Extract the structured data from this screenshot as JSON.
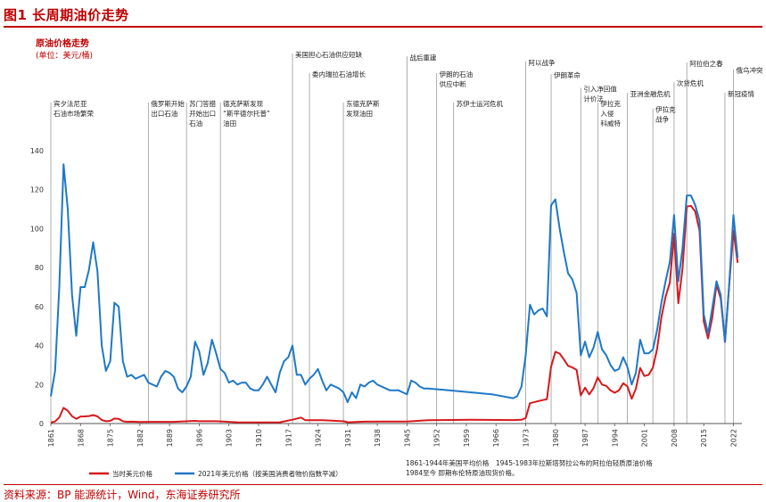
{
  "figure": {
    "title": "图1 长周期油价走势",
    "subtitle": "原油价格走势",
    "unit": "(单位：美元/桶)",
    "source": "资料来源：BP 能源统计，Wind，东海证券研究所"
  },
  "colors": {
    "accent": "#c00000",
    "nominal": "#d7191c",
    "real": "#1f78c8",
    "grid": "#9a9a9a"
  },
  "chart_data": {
    "type": "line",
    "xlim": [
      1861,
      2024
    ],
    "ylim": [
      0,
      140
    ],
    "yticks": [
      0,
      20,
      40,
      60,
      80,
      100,
      120,
      140
    ],
    "xticks": [
      1861,
      1868,
      1875,
      1882,
      1889,
      1896,
      1903,
      1910,
      1917,
      1924,
      1931,
      1938,
      1945,
      1952,
      1959,
      1966,
      1973,
      1980,
      1987,
      1994,
      2001,
      2008,
      2015,
      2022
    ],
    "grid": "vertical-at-events",
    "legend_position": "bottom",
    "notes": [
      "1861-1944年美国平均价格　1945-1983年拉斯塔努拉公布的阿拉伯轻质原油价格",
      "1984至今 即期布伦特原油现货价格。"
    ],
    "series": [
      {
        "name": "当时美元价格",
        "color": "#d7191c",
        "x": [
          1861,
          1862,
          1863,
          1864,
          1865,
          1866,
          1867,
          1868,
          1869,
          1870,
          1871,
          1872,
          1873,
          1874,
          1875,
          1876,
          1877,
          1878,
          1879,
          1880,
          1882,
          1885,
          1890,
          1895,
          1896,
          1900,
          1905,
          1910,
          1915,
          1918,
          1920,
          1921,
          1925,
          1930,
          1931,
          1935,
          1940,
          1945,
          1950,
          1960,
          1970,
          1972,
          1973,
          1974,
          1976,
          1978,
          1979,
          1980,
          1981,
          1982,
          1983,
          1984,
          1985,
          1986,
          1987,
          1988,
          1989,
          1990,
          1991,
          1992,
          1993,
          1994,
          1995,
          1996,
          1997,
          1998,
          1999,
          2000,
          2001,
          2002,
          2003,
          2004,
          2005,
          2006,
          2007,
          2008,
          2009,
          2010,
          2011,
          2012,
          2013,
          2014,
          2015,
          2016,
          2017,
          2018,
          2019,
          2020,
          2021,
          2022,
          2023
        ],
        "values": [
          0.5,
          1.05,
          3.15,
          8.06,
          6.59,
          3.74,
          2.41,
          3.63,
          3.64,
          3.86,
          4.34,
          3.64,
          1.83,
          1.17,
          1.35,
          2.56,
          2.42,
          1.19,
          0.86,
          0.95,
          0.78,
          0.88,
          0.87,
          1.36,
          1.18,
          1.19,
          0.62,
          0.61,
          0.64,
          1.98,
          3.07,
          1.73,
          1.68,
          1.19,
          0.65,
          0.97,
          1.02,
          1.05,
          1.71,
          1.9,
          1.8,
          1.9,
          2.83,
          10.41,
          11.51,
          12.5,
          29.2,
          36.8,
          35.9,
          32.9,
          29.6,
          28.8,
          27.6,
          14.4,
          18.4,
          14.9,
          18.2,
          23.7,
          20.0,
          19.3,
          17.0,
          15.8,
          17.0,
          20.7,
          19.1,
          12.7,
          17.9,
          28.5,
          24.4,
          25.0,
          28.8,
          38.3,
          54.5,
          65.1,
          72.4,
          97.3,
          61.7,
          79.6,
          111.3,
          111.7,
          108.7,
          98.9,
          52.4,
          43.7,
          54.2,
          71.3,
          64.2,
          41.8,
          70.9,
          99.0,
          82.5
        ]
      },
      {
        "name": "2021年美元价格（按美国消费者物价指数平减）",
        "color": "#1f78c8",
        "x": [
          1861,
          1862,
          1863,
          1864,
          1865,
          1866,
          1867,
          1868,
          1869,
          1870,
          1871,
          1872,
          1873,
          1874,
          1875,
          1876,
          1877,
          1878,
          1879,
          1880,
          1881,
          1882,
          1883,
          1884,
          1885,
          1886,
          1887,
          1888,
          1889,
          1890,
          1891,
          1892,
          1893,
          1894,
          1895,
          1896,
          1897,
          1898,
          1899,
          1900,
          1901,
          1902,
          1903,
          1904,
          1905,
          1906,
          1907,
          1908,
          1909,
          1910,
          1911,
          1912,
          1913,
          1914,
          1915,
          1916,
          1917,
          1918,
          1919,
          1920,
          1921,
          1922,
          1923,
          1924,
          1925,
          1926,
          1927,
          1928,
          1929,
          1930,
          1931,
          1932,
          1933,
          1934,
          1935,
          1936,
          1937,
          1938,
          1939,
          1940,
          1941,
          1942,
          1943,
          1944,
          1945,
          1946,
          1947,
          1948,
          1949,
          1950,
          1955,
          1960,
          1965,
          1970,
          1971,
          1972,
          1973,
          1974,
          1975,
          1976,
          1977,
          1978,
          1979,
          1980,
          1981,
          1982,
          1983,
          1984,
          1985,
          1986,
          1987,
          1988,
          1989,
          1990,
          1991,
          1992,
          1993,
          1994,
          1995,
          1996,
          1997,
          1998,
          1999,
          2000,
          2001,
          2002,
          2003,
          2004,
          2005,
          2006,
          2007,
          2008,
          2009,
          2010,
          2011,
          2012,
          2013,
          2014,
          2015,
          2016,
          2017,
          2018,
          2019,
          2020,
          2021,
          2022,
          2023
        ],
        "values": [
          14,
          27,
          70,
          133,
          110,
          66,
          45,
          70,
          70,
          79,
          93,
          78,
          40,
          27,
          32,
          62,
          60,
          32,
          24,
          25,
          23,
          24,
          25,
          21,
          20,
          19,
          24,
          27,
          26,
          24,
          18,
          16,
          19,
          24,
          42,
          37,
          25,
          31,
          43,
          36,
          28,
          26,
          21,
          22,
          20,
          21,
          21,
          18,
          17,
          17,
          20,
          24,
          20,
          16,
          26,
          32,
          34,
          40,
          25,
          25,
          20,
          23,
          25,
          28,
          22,
          17,
          20,
          19,
          18,
          16,
          11,
          16,
          13,
          20,
          19,
          21,
          22,
          20,
          19,
          18,
          17,
          17,
          17,
          16,
          15,
          22,
          21,
          19,
          18,
          18,
          17,
          16,
          15,
          13,
          14,
          19,
          35,
          61,
          56,
          58,
          59,
          55,
          112,
          115,
          100,
          88,
          77,
          74,
          67,
          35,
          42,
          34,
          39,
          47,
          38,
          35,
          30,
          27,
          28,
          34,
          29,
          20,
          26,
          43,
          36,
          36,
          38,
          48,
          62,
          73,
          83,
          107,
          73,
          90,
          117,
          117,
          112,
          104,
          56,
          46,
          59,
          73,
          66,
          42,
          71,
          107,
          85
        ]
      }
    ],
    "events": [
      {
        "label": "宾夕法尼亚\n石油市场繁荣",
        "year": 1861,
        "row": 5
      },
      {
        "label": "俄罗斯开始\n出口石油",
        "year": 1884,
        "row": 5
      },
      {
        "label": "苏门答腊\n开始出口\n石油",
        "year": 1893,
        "row": 5
      },
      {
        "label": "德克萨斯发现\n“斯平德尔托普”\n油田",
        "year": 1901,
        "row": 5
      },
      {
        "label": "美国担心石油供应短缺",
        "year": 1918,
        "row": 0
      },
      {
        "label": "委内瑞拉石油增长",
        "year": 1922,
        "row": 2
      },
      {
        "label": "东德克萨斯\n发现油田",
        "year": 1930,
        "row": 5
      },
      {
        "label": "战后重建",
        "year": 1945,
        "row": 0.3
      },
      {
        "label": "伊朗的石油\n供应中断",
        "year": 1952,
        "row": 2
      },
      {
        "label": "苏伊士运河危机",
        "year": 1956,
        "row": 5
      },
      {
        "label": "阿以战争",
        "year": 1973,
        "row": 0.8
      },
      {
        "label": "伊朗革命",
        "year": 1979,
        "row": 2.1
      },
      {
        "label": "引入净回值\n计价法",
        "year": 1986,
        "row": 3.5
      },
      {
        "label": "伊拉克\n入侵\n科威特",
        "year": 1990,
        "row": 5
      },
      {
        "label": "亚洲金融危机",
        "year": 1997,
        "row": 4
      },
      {
        "label": "伊拉克\n战争",
        "year": 2003,
        "row": 5.6
      },
      {
        "label": "次贷危机",
        "year": 2008,
        "row": 2.9
      },
      {
        "label": "阿拉伯之春",
        "year": 2011,
        "row": 0.9
      },
      {
        "label": "新冠疫情",
        "year": 2020,
        "row": 4
      },
      {
        "label": "俄乌冲突",
        "year": 2022,
        "row": 1.6
      }
    ]
  }
}
